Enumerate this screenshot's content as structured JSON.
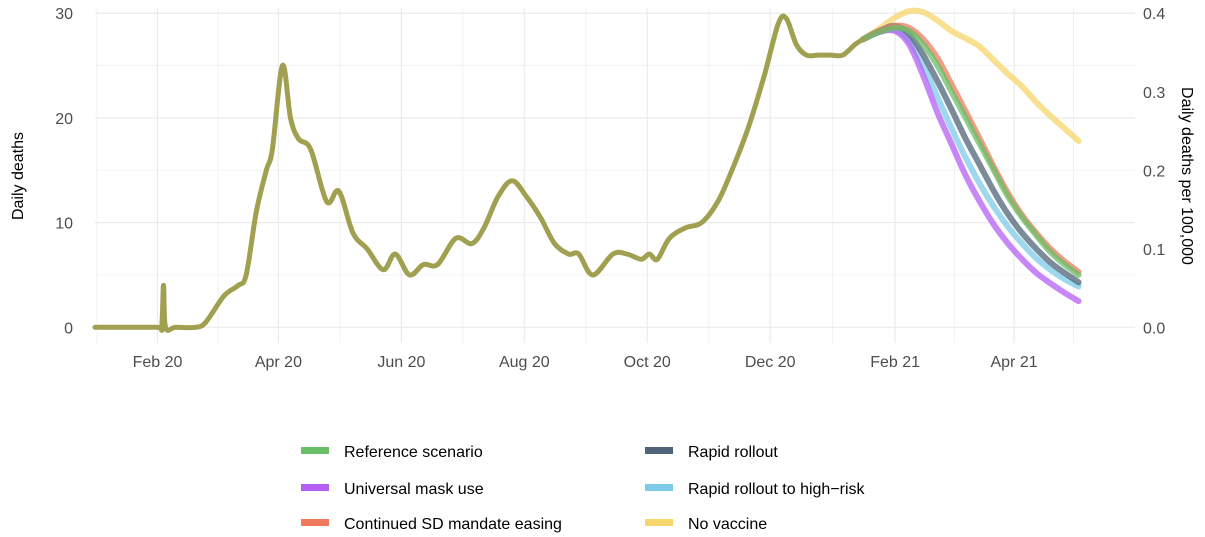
{
  "chart_data": {
    "type": "line",
    "title": "",
    "xlabel": "",
    "ylabel": "Daily deaths",
    "ylabel_right": "Daily deaths per 100,000",
    "grid": true,
    "legend_position": "bottom",
    "x_tick_labels": [
      "Feb 20",
      "Apr 20",
      "Jun 20",
      "Aug 20",
      "Oct 20",
      "Dec 20",
      "Feb 21",
      "Apr 21"
    ],
    "x_tick_dates": [
      "2020-02-01",
      "2020-04-01",
      "2020-06-01",
      "2020-08-01",
      "2020-10-01",
      "2020-12-01",
      "2021-02-01",
      "2021-04-01"
    ],
    "xlim": [
      "2020-01-01",
      "2021-05-31"
    ],
    "ylim": [
      -1.5,
      30.5
    ],
    "y_ticks": [
      0,
      10,
      20,
      30
    ],
    "y_right_ticks": [
      "0.0",
      "0.1",
      "0.2",
      "0.3",
      "0.4"
    ],
    "y_right_scale": 0.01333,
    "history": {
      "color": "#a0a050",
      "points": [
        [
          "2020-01-01",
          0
        ],
        [
          "2020-01-31",
          0
        ],
        [
          "2020-02-03",
          0
        ],
        [
          "2020-02-04",
          4
        ],
        [
          "2020-02-05",
          0
        ],
        [
          "2020-02-10",
          0
        ],
        [
          "2020-02-20",
          0
        ],
        [
          "2020-02-25",
          0.5
        ],
        [
          "2020-03-05",
          3
        ],
        [
          "2020-03-12",
          4
        ],
        [
          "2020-03-16",
          5
        ],
        [
          "2020-03-21",
          11
        ],
        [
          "2020-03-26",
          15
        ],
        [
          "2020-03-29",
          17
        ],
        [
          "2020-04-03",
          25
        ],
        [
          "2020-04-07",
          20
        ],
        [
          "2020-04-11",
          18
        ],
        [
          "2020-04-17",
          17
        ],
        [
          "2020-04-25",
          12
        ],
        [
          "2020-05-01",
          13
        ],
        [
          "2020-05-08",
          9
        ],
        [
          "2020-05-15",
          7.5
        ],
        [
          "2020-05-23",
          5.5
        ],
        [
          "2020-05-29",
          7
        ],
        [
          "2020-06-05",
          5
        ],
        [
          "2020-06-12",
          6
        ],
        [
          "2020-06-19",
          6
        ],
        [
          "2020-06-28",
          8.5
        ],
        [
          "2020-07-06",
          8
        ],
        [
          "2020-07-12",
          9.5
        ],
        [
          "2020-07-19",
          12.5
        ],
        [
          "2020-07-26",
          14
        ],
        [
          "2020-08-02",
          12.5
        ],
        [
          "2020-08-09",
          10.5
        ],
        [
          "2020-08-16",
          8
        ],
        [
          "2020-08-23",
          7
        ],
        [
          "2020-08-28",
          7
        ],
        [
          "2020-09-04",
          5
        ],
        [
          "2020-09-14",
          7
        ],
        [
          "2020-09-21",
          7
        ],
        [
          "2020-09-28",
          6.5
        ],
        [
          "2020-10-02",
          7
        ],
        [
          "2020-10-06",
          6.5
        ],
        [
          "2020-10-12",
          8.5
        ],
        [
          "2020-10-20",
          9.5
        ],
        [
          "2020-10-28",
          10
        ],
        [
          "2020-11-05",
          12
        ],
        [
          "2020-11-12",
          15
        ],
        [
          "2020-11-20",
          19
        ],
        [
          "2020-11-28",
          24
        ],
        [
          "2020-12-05",
          29
        ],
        [
          "2020-12-09",
          29.5
        ],
        [
          "2020-12-14",
          27
        ],
        [
          "2020-12-19",
          26
        ],
        [
          "2020-12-25",
          26
        ],
        [
          "2020-12-31",
          26
        ],
        [
          "2021-01-06",
          26
        ],
        [
          "2021-01-12",
          27
        ],
        [
          "2021-01-16",
          27.5
        ]
      ]
    },
    "series": [
      {
        "name": "Reference scenario",
        "color": "#6abf69",
        "points": [
          [
            "2021-01-16",
            27.5
          ],
          [
            "2021-01-24",
            28.2
          ],
          [
            "2021-02-01",
            28.6
          ],
          [
            "2021-02-08",
            28.3
          ],
          [
            "2021-02-15",
            27
          ],
          [
            "2021-02-22",
            25
          ],
          [
            "2021-03-01",
            22.5
          ],
          [
            "2021-03-08",
            20
          ],
          [
            "2021-03-15",
            17.5
          ],
          [
            "2021-03-22",
            15
          ],
          [
            "2021-03-29",
            12.5
          ],
          [
            "2021-04-05",
            10.5
          ],
          [
            "2021-04-12",
            8.8
          ],
          [
            "2021-04-19",
            7.2
          ],
          [
            "2021-04-26",
            6
          ],
          [
            "2021-05-03",
            5
          ]
        ]
      },
      {
        "name": "Universal mask use",
        "color": "#b65ff3",
        "points": [
          [
            "2021-01-16",
            27.5
          ],
          [
            "2021-01-24",
            28.2
          ],
          [
            "2021-02-01",
            28.3
          ],
          [
            "2021-02-08",
            27
          ],
          [
            "2021-02-15",
            24
          ],
          [
            "2021-02-22",
            20.5
          ],
          [
            "2021-03-01",
            17.5
          ],
          [
            "2021-03-08",
            14.5
          ],
          [
            "2021-03-15",
            12
          ],
          [
            "2021-03-22",
            9.8
          ],
          [
            "2021-03-29",
            8
          ],
          [
            "2021-04-05",
            6.5
          ],
          [
            "2021-04-12",
            5.2
          ],
          [
            "2021-04-19",
            4.2
          ],
          [
            "2021-04-26",
            3.3
          ],
          [
            "2021-05-03",
            2.5
          ]
        ]
      },
      {
        "name": "Continued SD mandate easing",
        "color": "#f07b5c",
        "points": [
          [
            "2021-01-16",
            27.5
          ],
          [
            "2021-01-24",
            28.3
          ],
          [
            "2021-02-01",
            28.8
          ],
          [
            "2021-02-08",
            28.6
          ],
          [
            "2021-02-15",
            27.5
          ],
          [
            "2021-02-22",
            25.7
          ],
          [
            "2021-03-01",
            23.2
          ],
          [
            "2021-03-08",
            20.6
          ],
          [
            "2021-03-15",
            18
          ],
          [
            "2021-03-22",
            15.3
          ],
          [
            "2021-03-29",
            12.8
          ],
          [
            "2021-04-05",
            10.7
          ],
          [
            "2021-04-12",
            9
          ],
          [
            "2021-04-19",
            7.5
          ],
          [
            "2021-04-26",
            6.3
          ],
          [
            "2021-05-03",
            5.3
          ]
        ]
      },
      {
        "name": "Rapid rollout",
        "color": "#4f6478",
        "points": [
          [
            "2021-01-16",
            27.5
          ],
          [
            "2021-01-24",
            28.3
          ],
          [
            "2021-02-01",
            28.8
          ],
          [
            "2021-02-08",
            28
          ],
          [
            "2021-02-15",
            26
          ],
          [
            "2021-02-22",
            23.5
          ],
          [
            "2021-03-01",
            20.8
          ],
          [
            "2021-03-08",
            18
          ],
          [
            "2021-03-15",
            15.5
          ],
          [
            "2021-03-22",
            13
          ],
          [
            "2021-03-29",
            10.8
          ],
          [
            "2021-04-05",
            9
          ],
          [
            "2021-04-12",
            7.5
          ],
          [
            "2021-04-19",
            6.2
          ],
          [
            "2021-04-26",
            5.2
          ],
          [
            "2021-05-03",
            4.3
          ]
        ]
      },
      {
        "name": "Rapid rollout to high−risk",
        "color": "#7ecbe8",
        "points": [
          [
            "2021-01-16",
            27.5
          ],
          [
            "2021-01-24",
            28.2
          ],
          [
            "2021-02-01",
            28.4
          ],
          [
            "2021-02-08",
            27.4
          ],
          [
            "2021-02-15",
            25
          ],
          [
            "2021-02-22",
            22
          ],
          [
            "2021-03-01",
            19
          ],
          [
            "2021-03-08",
            16.2
          ],
          [
            "2021-03-15",
            13.7
          ],
          [
            "2021-03-22",
            11.5
          ],
          [
            "2021-03-29",
            9.6
          ],
          [
            "2021-04-05",
            8
          ],
          [
            "2021-04-12",
            6.6
          ],
          [
            "2021-04-19",
            5.5
          ],
          [
            "2021-04-26",
            4.6
          ],
          [
            "2021-05-03",
            3.9
          ]
        ]
      },
      {
        "name": "No vaccine",
        "color": "#f7d66b",
        "points": [
          [
            "2021-01-16",
            27.5
          ],
          [
            "2021-01-24",
            28.5
          ],
          [
            "2021-02-01",
            29.6
          ],
          [
            "2021-02-08",
            30.2
          ],
          [
            "2021-02-15",
            30.1
          ],
          [
            "2021-02-22",
            29.3
          ],
          [
            "2021-03-01",
            28.3
          ],
          [
            "2021-03-08",
            27.6
          ],
          [
            "2021-03-15",
            26.8
          ],
          [
            "2021-03-22",
            25.5
          ],
          [
            "2021-03-29",
            24.2
          ],
          [
            "2021-04-05",
            23
          ],
          [
            "2021-04-12",
            21.5
          ],
          [
            "2021-04-19",
            20.2
          ],
          [
            "2021-04-26",
            19
          ],
          [
            "2021-05-03",
            17.8
          ]
        ]
      }
    ],
    "legend": [
      {
        "label": "Reference scenario",
        "color": "#6abf69"
      },
      {
        "label": "Universal mask use",
        "color": "#b65ff3"
      },
      {
        "label": "Continued SD mandate easing",
        "color": "#f07b5c"
      },
      {
        "label": "Rapid rollout",
        "color": "#4f6478"
      },
      {
        "label": "Rapid rollout to high−risk",
        "color": "#7ecbe8"
      },
      {
        "label": "No vaccine",
        "color": "#f7d66b"
      }
    ]
  }
}
